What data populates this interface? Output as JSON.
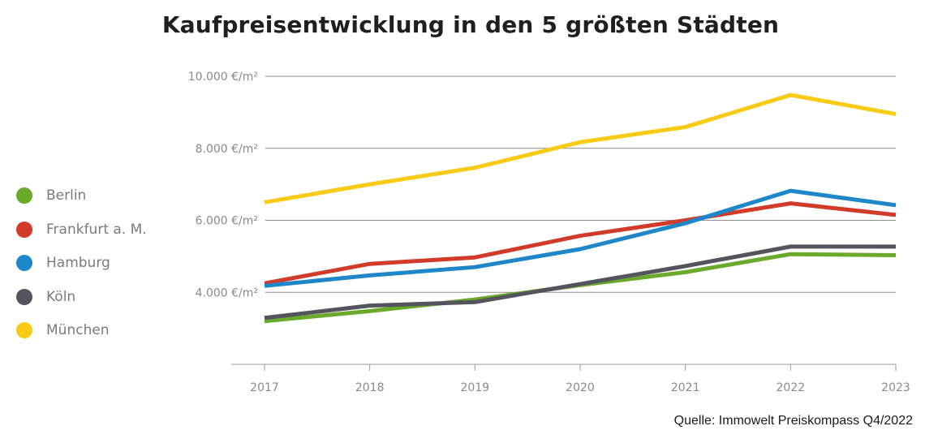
{
  "title": "Kaufpreisentwicklung in den 5 größten Städten",
  "source": "Quelle: Immowelt Preiskompass Q4/2022",
  "legend": [
    {
      "name": "Berlin",
      "color": "#6aaa2a"
    },
    {
      "name": "Frankfurt a. M.",
      "color": "#d23a2a"
    },
    {
      "name": "Hamburg",
      "color": "#1e87c9"
    },
    {
      "name": "Köln",
      "color": "#55545e"
    },
    {
      "name": "München",
      "color": "#f7cb16"
    }
  ],
  "chart_data": {
    "type": "line",
    "title": "Kaufpreisentwicklung in den 5 größten Städten",
    "x": [
      "2017",
      "2018",
      "2019",
      "2020",
      "2021",
      "2022",
      "2023"
    ],
    "ylim": [
      2000,
      10000
    ],
    "yticks": [
      4000,
      6000,
      8000,
      10000
    ],
    "ytick_labels": [
      "4.000 €/m²",
      "6.000 €/m²",
      "8.000 €/m²",
      "10.000 €/m²"
    ],
    "grid": true,
    "legend_position": "left",
    "series": [
      {
        "name": "Berlin",
        "color": "#6aaa2a",
        "values": [
          3200,
          3480,
          3800,
          4200,
          4560,
          5060,
          5030
        ]
      },
      {
        "name": "Frankfurt a. M.",
        "color": "#d23a2a",
        "values": [
          4250,
          4790,
          4970,
          5570,
          6000,
          6470,
          6150
        ]
      },
      {
        "name": "Hamburg",
        "color": "#1e87c9",
        "values": [
          4180,
          4470,
          4700,
          5200,
          5920,
          6820,
          6420
        ]
      },
      {
        "name": "Köln",
        "color": "#55545e",
        "values": [
          3290,
          3630,
          3730,
          4230,
          4730,
          5270,
          5270
        ]
      },
      {
        "name": "München",
        "color": "#f7cb16",
        "values": [
          6500,
          7000,
          7460,
          8170,
          8590,
          9480,
          8950
        ]
      }
    ]
  }
}
